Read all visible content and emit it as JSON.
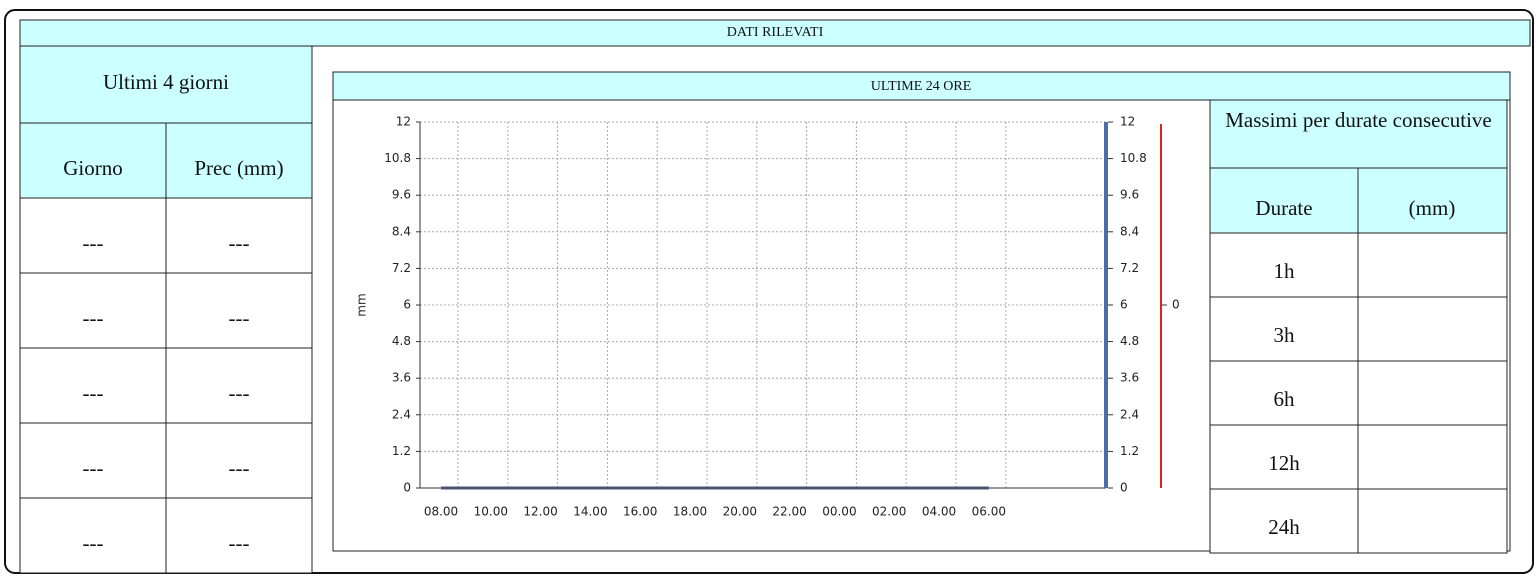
{
  "header": {
    "title": "DATI RILEVATI"
  },
  "left_table": {
    "title": "Ultimi 4 giorni",
    "columns": [
      "Giorno",
      "Prec (mm)"
    ],
    "rows": [
      [
        "---",
        "---"
      ],
      [
        "---",
        "---"
      ],
      [
        "---",
        "---"
      ],
      [
        "---",
        "---"
      ],
      [
        "---",
        "---"
      ]
    ]
  },
  "chart_data": {
    "type": "line",
    "title": "ULTIME 24 ORE",
    "y_label": "mm",
    "categories": [
      "08.00",
      "10.00",
      "12.00",
      "14.00",
      "16.00",
      "18.00",
      "20.00",
      "22.00",
      "00.00",
      "02.00",
      "04.00",
      "06.00"
    ],
    "values": [
      0,
      0,
      0,
      0,
      0,
      0,
      0,
      0,
      0,
      0,
      0,
      0
    ],
    "color": "#4a5470",
    "ylim": [
      0,
      12
    ],
    "yticks": [
      0,
      1.2,
      2.4,
      3.6,
      4.8,
      6,
      7.2,
      8.4,
      9.6,
      10.8,
      12
    ],
    "y2lim": [
      0,
      12
    ],
    "y2ticks": [
      0,
      1.2,
      2.4,
      3.6,
      4.8,
      6,
      7.2,
      8.4,
      9.6,
      10.8,
      12
    ],
    "y2color": "#4a6ea8",
    "y3ticks": [
      0
    ],
    "y3color": "#e02020",
    "grid": true
  },
  "right_table": {
    "title": "Massimi per durate consecutive",
    "columns": [
      "Durate",
      "(mm)"
    ],
    "durations": [
      "1h",
      "3h",
      "6h",
      "12h",
      "24h"
    ]
  }
}
